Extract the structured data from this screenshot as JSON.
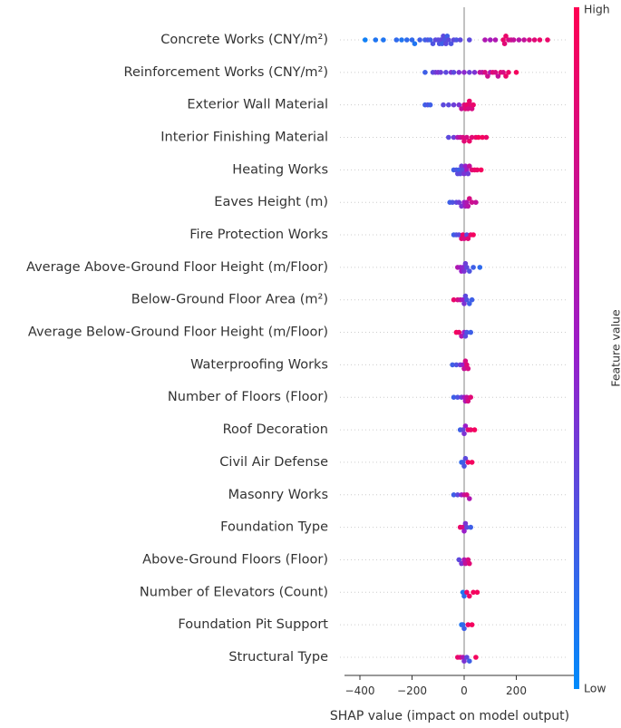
{
  "chart_data": {
    "type": "scatter",
    "subtype": "shap-beeswarm",
    "xlabel": "SHAP value (impact on model output)",
    "xlim": [
      -420,
      340
    ],
    "xticks": [
      -400,
      -200,
      0,
      200
    ],
    "xtick_labels": [
      "−400",
      "−200",
      "0",
      "200"
    ],
    "grid": false,
    "colorbar": {
      "title": "Feature value",
      "high_label": "High",
      "low_label": "Low",
      "low_color": "#008bfb",
      "high_color": "#ff0052"
    },
    "features": [
      {
        "name": "Concrete Works (CNY/m²)",
        "points": [
          [
            -380,
            0.05
          ],
          [
            -340,
            0.1
          ],
          [
            -310,
            0.1
          ],
          [
            -260,
            0.15
          ],
          [
            -240,
            0.1
          ],
          [
            -220,
            0.15
          ],
          [
            -200,
            0.15
          ],
          [
            -190,
            0.1
          ],
          [
            -170,
            0.2
          ],
          [
            -150,
            0.2
          ],
          [
            -140,
            0.25
          ],
          [
            -130,
            0.2
          ],
          [
            -120,
            0.25
          ],
          [
            -110,
            0.3
          ],
          [
            -100,
            0.3
          ],
          [
            -95,
            0.25
          ],
          [
            -90,
            0.3
          ],
          [
            -85,
            0.2
          ],
          [
            -80,
            0.3
          ],
          [
            -75,
            0.25
          ],
          [
            -70,
            0.3
          ],
          [
            -65,
            0.2
          ],
          [
            -60,
            0.3
          ],
          [
            -50,
            0.25
          ],
          [
            -40,
            0.3
          ],
          [
            -30,
            0.25
          ],
          [
            -15,
            0.3
          ],
          [
            20,
            0.3
          ],
          [
            80,
            0.6
          ],
          [
            100,
            0.55
          ],
          [
            120,
            0.6
          ],
          [
            150,
            0.9
          ],
          [
            155,
            0.85
          ],
          [
            160,
            0.9
          ],
          [
            170,
            0.8
          ],
          [
            180,
            0.75
          ],
          [
            190,
            0.7
          ],
          [
            210,
            0.65
          ],
          [
            230,
            0.7
          ],
          [
            250,
            0.8
          ],
          [
            270,
            0.85
          ],
          [
            290,
            0.9
          ],
          [
            320,
            0.9
          ]
        ]
      },
      {
        "name": "Reinforcement Works (CNY/m²)",
        "points": [
          [
            -150,
            0.2
          ],
          [
            -120,
            0.3
          ],
          [
            -110,
            0.35
          ],
          [
            -100,
            0.4
          ],
          [
            -90,
            0.35
          ],
          [
            -70,
            0.3
          ],
          [
            -50,
            0.4
          ],
          [
            -40,
            0.3
          ],
          [
            -20,
            0.4
          ],
          [
            0,
            0.45
          ],
          [
            20,
            0.35
          ],
          [
            40,
            0.4
          ],
          [
            60,
            0.7
          ],
          [
            70,
            0.65
          ],
          [
            80,
            0.8
          ],
          [
            90,
            0.75
          ],
          [
            100,
            0.6
          ],
          [
            110,
            0.85
          ],
          [
            120,
            0.8
          ],
          [
            130,
            0.7
          ],
          [
            140,
            0.85
          ],
          [
            150,
            0.8
          ],
          [
            160,
            0.9
          ],
          [
            170,
            0.9
          ],
          [
            200,
            0.95
          ]
        ]
      },
      {
        "name": "Exterior Wall Material",
        "points": [
          [
            -150,
            0.2
          ],
          [
            -140,
            0.25
          ],
          [
            -130,
            0.2
          ],
          [
            -80,
            0.3
          ],
          [
            -60,
            0.3
          ],
          [
            -40,
            0.35
          ],
          [
            -20,
            0.4
          ],
          [
            -10,
            0.7
          ],
          [
            0,
            0.8
          ],
          [
            5,
            0.85
          ],
          [
            10,
            0.9
          ],
          [
            15,
            0.8
          ],
          [
            20,
            0.9
          ],
          [
            25,
            0.85
          ],
          [
            30,
            0.8
          ],
          [
            35,
            0.9
          ]
        ]
      },
      {
        "name": "Interior Finishing Material",
        "points": [
          [
            -60,
            0.3
          ],
          [
            -40,
            0.35
          ],
          [
            -25,
            0.6
          ],
          [
            -15,
            0.7
          ],
          [
            -5,
            0.8
          ],
          [
            0,
            0.85
          ],
          [
            10,
            0.8
          ],
          [
            20,
            0.9
          ],
          [
            30,
            0.85
          ],
          [
            45,
            0.9
          ],
          [
            55,
            0.95
          ],
          [
            70,
            0.95
          ],
          [
            85,
            0.9
          ]
        ]
      },
      {
        "name": "Heating Works",
        "points": [
          [
            -40,
            0.2
          ],
          [
            -30,
            0.25
          ],
          [
            -25,
            0.3
          ],
          [
            -20,
            0.2
          ],
          [
            -15,
            0.3
          ],
          [
            -10,
            0.35
          ],
          [
            -5,
            0.3
          ],
          [
            0,
            0.4
          ],
          [
            5,
            0.5
          ],
          [
            10,
            0.55
          ],
          [
            15,
            0.35
          ],
          [
            20,
            0.7
          ],
          [
            30,
            0.85
          ],
          [
            40,
            0.9
          ],
          [
            50,
            0.9
          ],
          [
            65,
            0.95
          ]
        ]
      },
      {
        "name": "Eaves Height (m)",
        "points": [
          [
            -55,
            0.2
          ],
          [
            -45,
            0.25
          ],
          [
            -30,
            0.3
          ],
          [
            -20,
            0.35
          ],
          [
            -10,
            0.4
          ],
          [
            0,
            0.5
          ],
          [
            5,
            0.55
          ],
          [
            10,
            0.6
          ],
          [
            15,
            0.65
          ],
          [
            20,
            0.8
          ],
          [
            30,
            0.75
          ],
          [
            45,
            0.7
          ]
        ]
      },
      {
        "name": "Fire Protection Works",
        "points": [
          [
            -40,
            0.2
          ],
          [
            -30,
            0.25
          ],
          [
            -20,
            0.3
          ],
          [
            -10,
            0.85
          ],
          [
            -5,
            0.9
          ],
          [
            0,
            0.8
          ],
          [
            10,
            0.3
          ],
          [
            15,
            0.85
          ],
          [
            25,
            0.9
          ],
          [
            35,
            0.95
          ]
        ]
      },
      {
        "name": "Average Above-Ground Floor Height (m/Floor)",
        "points": [
          [
            -25,
            0.6
          ],
          [
            -15,
            0.55
          ],
          [
            -10,
            0.5
          ],
          [
            -5,
            0.45
          ],
          [
            0,
            0.4
          ],
          [
            5,
            0.35
          ],
          [
            10,
            0.3
          ],
          [
            20,
            0.25
          ],
          [
            35,
            0.2
          ],
          [
            60,
            0.15
          ]
        ]
      },
      {
        "name": "Below-Ground Floor Area (m²)",
        "points": [
          [
            -40,
            0.9
          ],
          [
            -25,
            0.8
          ],
          [
            -15,
            0.7
          ],
          [
            -5,
            0.5
          ],
          [
            0,
            0.4
          ],
          [
            5,
            0.3
          ],
          [
            10,
            0.25
          ],
          [
            20,
            0.2
          ],
          [
            30,
            0.2
          ]
        ]
      },
      {
        "name": "Average Below-Ground Floor Height (m/Floor)",
        "points": [
          [
            -30,
            0.95
          ],
          [
            -20,
            0.9
          ],
          [
            -10,
            0.6
          ],
          [
            0,
            0.5
          ],
          [
            5,
            0.3
          ],
          [
            10,
            0.25
          ],
          [
            25,
            0.2
          ]
        ]
      },
      {
        "name": "Waterproofing Works",
        "points": [
          [
            -45,
            0.2
          ],
          [
            -30,
            0.25
          ],
          [
            -15,
            0.35
          ],
          [
            -5,
            0.5
          ],
          [
            0,
            0.7
          ],
          [
            5,
            0.8
          ],
          [
            10,
            0.85
          ],
          [
            15,
            0.8
          ]
        ]
      },
      {
        "name": "Number of Floors (Floor)",
        "points": [
          [
            -40,
            0.2
          ],
          [
            -25,
            0.25
          ],
          [
            -10,
            0.35
          ],
          [
            0,
            0.5
          ],
          [
            5,
            0.6
          ],
          [
            10,
            0.7
          ],
          [
            15,
            0.8
          ],
          [
            25,
            0.85
          ]
        ]
      },
      {
        "name": "Roof Decoration",
        "points": [
          [
            -15,
            0.2
          ],
          [
            -5,
            0.3
          ],
          [
            0,
            0.4
          ],
          [
            5,
            0.5
          ],
          [
            15,
            0.85
          ],
          [
            25,
            0.9
          ],
          [
            40,
            0.95
          ]
        ]
      },
      {
        "name": "Civil Air Defense",
        "points": [
          [
            -10,
            0.15
          ],
          [
            -5,
            0.2
          ],
          [
            0,
            0.25
          ],
          [
            5,
            0.3
          ],
          [
            15,
            0.9
          ],
          [
            30,
            0.95
          ]
        ]
      },
      {
        "name": "Masonry Works",
        "points": [
          [
            -40,
            0.2
          ],
          [
            -25,
            0.3
          ],
          [
            -10,
            0.5
          ],
          [
            0,
            0.7
          ],
          [
            10,
            0.8
          ],
          [
            20,
            0.6
          ]
        ]
      },
      {
        "name": "Foundation Type",
        "points": [
          [
            -15,
            0.9
          ],
          [
            -5,
            0.8
          ],
          [
            0,
            0.5
          ],
          [
            5,
            0.4
          ],
          [
            10,
            0.3
          ],
          [
            25,
            0.2
          ]
        ]
      },
      {
        "name": "Above-Ground Floors (Floor)",
        "points": [
          [
            -20,
            0.3
          ],
          [
            -10,
            0.4
          ],
          [
            0,
            0.6
          ],
          [
            5,
            0.7
          ],
          [
            15,
            0.8
          ],
          [
            20,
            0.85
          ]
        ]
      },
      {
        "name": "Number of Elevators (Count)",
        "points": [
          [
            -5,
            0.1
          ],
          [
            0,
            0.15
          ],
          [
            10,
            0.9
          ],
          [
            20,
            0.92
          ],
          [
            35,
            0.95
          ],
          [
            50,
            0.95
          ]
        ]
      },
      {
        "name": "Foundation Pit Support",
        "points": [
          [
            -10,
            0.1
          ],
          [
            -5,
            0.15
          ],
          [
            0,
            0.2
          ],
          [
            15,
            0.9
          ],
          [
            30,
            0.95
          ]
        ]
      },
      {
        "name": "Structural Type",
        "points": [
          [
            -25,
            0.9
          ],
          [
            -15,
            0.85
          ],
          [
            -5,
            0.6
          ],
          [
            0,
            0.4
          ],
          [
            10,
            0.3
          ],
          [
            20,
            0.2
          ],
          [
            45,
            0.95
          ]
        ]
      }
    ]
  }
}
